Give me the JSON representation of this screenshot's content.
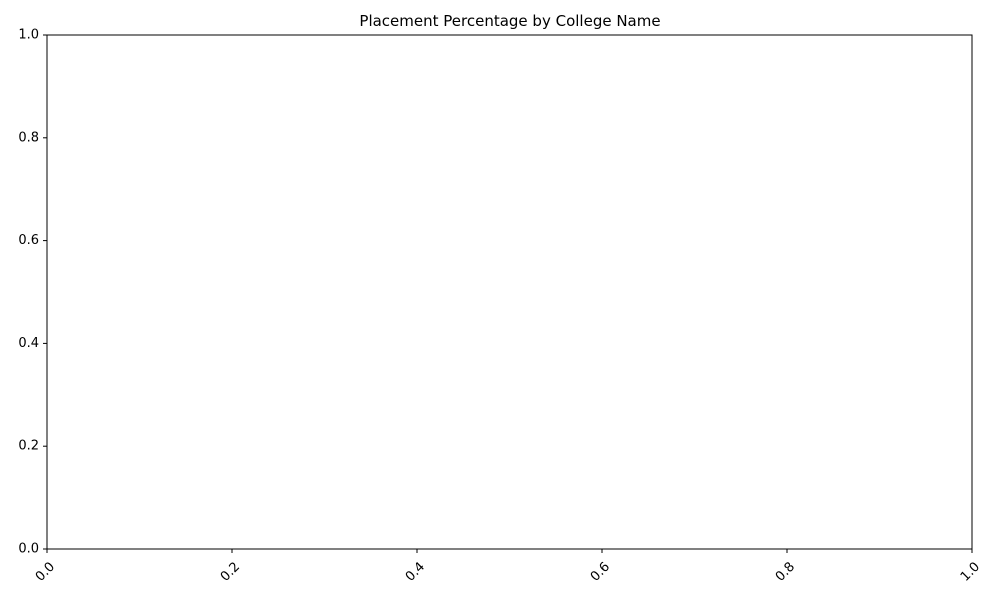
{
  "chart_data": {
    "type": "bar",
    "title": "Placement Percentage by College Name",
    "xlabel": "",
    "ylabel": "",
    "categories": [],
    "values": [],
    "xlim": [
      0.0,
      1.0
    ],
    "ylim": [
      0.0,
      1.0
    ],
    "xticks": [
      "0.0",
      "0.2",
      "0.4",
      "0.6",
      "0.8",
      "1.0"
    ],
    "yticks": [
      "0.0",
      "0.2",
      "0.4",
      "0.6",
      "0.8",
      "1.0"
    ],
    "xtick_rotation_deg": 45,
    "grid": false,
    "legend": "none",
    "colors": {
      "axes": "#000000",
      "background": "#ffffff"
    }
  }
}
